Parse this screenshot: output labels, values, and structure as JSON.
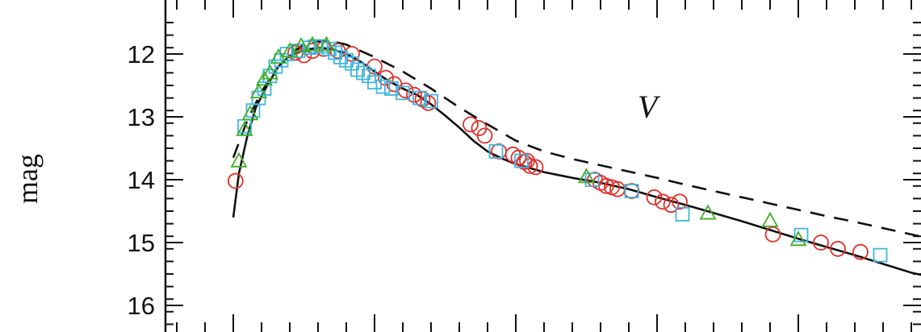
{
  "chart_data": {
    "type": "scatter",
    "ylabel": "mag",
    "annotation": "V",
    "xlim": [
      0,
      245
    ],
    "ylim": [
      16.3,
      11.4
    ],
    "y_inverted": true,
    "yticks": [
      12,
      13,
      14,
      15,
      16
    ],
    "x_minor_step": 10,
    "grid": false,
    "colors": {
      "circles": "#e0302a",
      "squares": "#3fb6e0",
      "triangles": "#3fae2a",
      "solid": "#111111",
      "dashed": "#111111"
    },
    "series": [
      {
        "marker": "circle",
        "points": [
          [
            0.8,
            14.02
          ],
          [
            22,
            11.98
          ],
          [
            25,
            12.02
          ],
          [
            28,
            11.95
          ],
          [
            32,
            11.92
          ],
          [
            37,
            11.95
          ],
          [
            42,
            12.0
          ],
          [
            50,
            12.2
          ],
          [
            54,
            12.38
          ],
          [
            57,
            12.48
          ],
          [
            61,
            12.58
          ],
          [
            64,
            12.65
          ],
          [
            67,
            12.72
          ],
          [
            69,
            12.78
          ],
          [
            84,
            13.12
          ],
          [
            87,
            13.18
          ],
          [
            89,
            13.3
          ],
          [
            94,
            13.55
          ],
          [
            99,
            13.6
          ],
          [
            101,
            13.65
          ],
          [
            103,
            13.72
          ],
          [
            104,
            13.7
          ],
          [
            105,
            13.78
          ],
          [
            107,
            13.8
          ],
          [
            128,
            14.0
          ],
          [
            130,
            14.05
          ],
          [
            132,
            14.1
          ],
          [
            134,
            14.12
          ],
          [
            136,
            14.15
          ],
          [
            141,
            14.18
          ],
          [
            149,
            14.28
          ],
          [
            152,
            14.35
          ],
          [
            155,
            14.4
          ],
          [
            158,
            14.35
          ],
          [
            191,
            14.87
          ],
          [
            208,
            15.0
          ],
          [
            214,
            15.1
          ],
          [
            222,
            15.15
          ]
        ]
      },
      {
        "marker": "square",
        "points": [
          [
            4,
            13.15
          ],
          [
            7,
            12.9
          ],
          [
            9,
            12.7
          ],
          [
            11,
            12.55
          ],
          [
            13,
            12.35
          ],
          [
            15,
            12.2
          ],
          [
            17,
            12.1
          ],
          [
            19,
            12.0
          ],
          [
            23,
            11.95
          ],
          [
            27,
            11.9
          ],
          [
            29,
            11.88
          ],
          [
            31,
            11.88
          ],
          [
            34,
            11.92
          ],
          [
            36,
            11.98
          ],
          [
            38,
            12.05
          ],
          [
            40,
            12.1
          ],
          [
            42,
            12.15
          ],
          [
            44,
            12.25
          ],
          [
            46,
            12.3
          ],
          [
            48,
            12.35
          ],
          [
            50,
            12.45
          ],
          [
            53,
            12.52
          ],
          [
            56,
            12.55
          ],
          [
            60,
            12.62
          ],
          [
            66,
            12.7
          ],
          [
            70,
            12.75
          ],
          [
            93,
            13.55
          ],
          [
            102,
            13.7
          ],
          [
            127,
            14.0
          ],
          [
            141,
            14.18
          ],
          [
            159,
            14.55
          ],
          [
            201,
            14.88
          ],
          [
            229,
            15.2
          ]
        ]
      },
      {
        "marker": "triangle",
        "points": [
          [
            2,
            13.7
          ],
          [
            4,
            13.2
          ],
          [
            6,
            12.95
          ],
          [
            9,
            12.6
          ],
          [
            11,
            12.4
          ],
          [
            13,
            12.3
          ],
          [
            16,
            12.05
          ],
          [
            20,
            11.95
          ],
          [
            24,
            11.87
          ],
          [
            28,
            11.85
          ],
          [
            33,
            11.85
          ],
          [
            125,
            13.95
          ],
          [
            168,
            14.53
          ],
          [
            190,
            14.65
          ],
          [
            200,
            14.95
          ]
        ]
      }
    ],
    "lines": [
      {
        "style": "solid",
        "points": [
          [
            0,
            14.6
          ],
          [
            2,
            13.9
          ],
          [
            5,
            13.3
          ],
          [
            8,
            12.85
          ],
          [
            12,
            12.5
          ],
          [
            16,
            12.2
          ],
          [
            20,
            12.03
          ],
          [
            25,
            11.94
          ],
          [
            30,
            11.9
          ],
          [
            35,
            11.92
          ],
          [
            40,
            12.0
          ],
          [
            45,
            12.12
          ],
          [
            50,
            12.28
          ],
          [
            55,
            12.43
          ],
          [
            60,
            12.55
          ],
          [
            65,
            12.65
          ],
          [
            70,
            12.8
          ],
          [
            75,
            12.98
          ],
          [
            80,
            13.17
          ],
          [
            85,
            13.38
          ],
          [
            90,
            13.55
          ],
          [
            95,
            13.66
          ],
          [
            100,
            13.75
          ],
          [
            110,
            13.88
          ],
          [
            120,
            13.97
          ],
          [
            130,
            14.05
          ],
          [
            140,
            14.15
          ],
          [
            150,
            14.28
          ],
          [
            160,
            14.4
          ],
          [
            170,
            14.53
          ],
          [
            180,
            14.66
          ],
          [
            190,
            14.8
          ],
          [
            200,
            14.94
          ],
          [
            210,
            15.07
          ],
          [
            220,
            15.2
          ],
          [
            230,
            15.34
          ],
          [
            240,
            15.48
          ],
          [
            245,
            15.53
          ]
        ]
      },
      {
        "style": "dashed",
        "points": [
          [
            0,
            13.65
          ],
          [
            5,
            13.05
          ],
          [
            10,
            12.6
          ],
          [
            15,
            12.25
          ],
          [
            20,
            12.0
          ],
          [
            25,
            11.85
          ],
          [
            30,
            11.8
          ],
          [
            35,
            11.8
          ],
          [
            40,
            11.85
          ],
          [
            45,
            11.95
          ],
          [
            50,
            12.05
          ],
          [
            60,
            12.28
          ],
          [
            70,
            12.55
          ],
          [
            80,
            12.85
          ],
          [
            90,
            13.12
          ],
          [
            100,
            13.38
          ],
          [
            110,
            13.55
          ],
          [
            120,
            13.67
          ],
          [
            130,
            13.77
          ],
          [
            140,
            13.87
          ],
          [
            150,
            13.97
          ],
          [
            160,
            14.08
          ],
          [
            170,
            14.18
          ],
          [
            180,
            14.28
          ],
          [
            190,
            14.38
          ],
          [
            200,
            14.48
          ],
          [
            210,
            14.58
          ],
          [
            220,
            14.67
          ],
          [
            230,
            14.77
          ],
          [
            240,
            14.87
          ],
          [
            245,
            14.92
          ]
        ]
      }
    ]
  }
}
